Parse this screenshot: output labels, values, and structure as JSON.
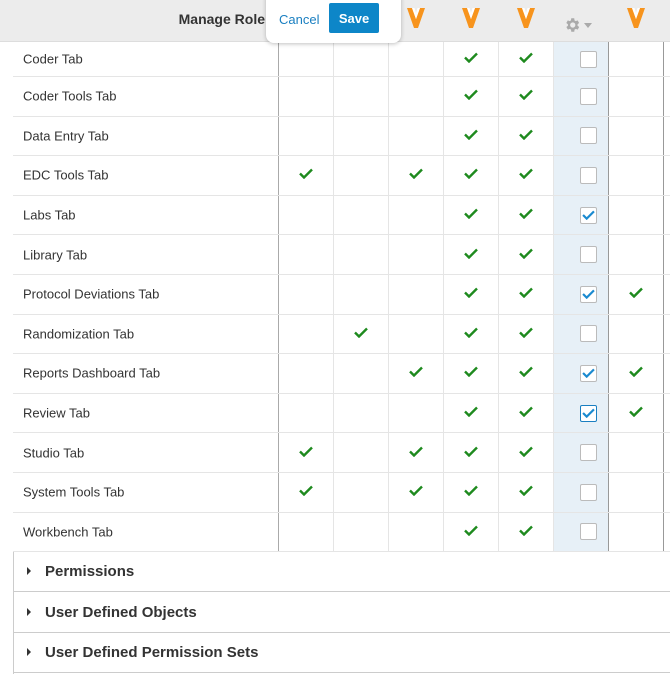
{
  "header": {
    "title": "Manage Role",
    "cancel_label": "Cancel",
    "save_label": "Save",
    "logo_columns": [
      3,
      4,
      5,
      7
    ],
    "logo_color": "#f7941d",
    "gear_icon": "gear-icon"
  },
  "colors": {
    "check": "#1e8a1e",
    "highlight_column": "#e7f0f7",
    "accent": "#0d86c8"
  },
  "rows": [
    {
      "label": "Coder Tab",
      "checks": [
        false,
        false,
        false,
        true,
        true
      ],
      "box": false,
      "last": false
    },
    {
      "label": "Coder Tools Tab",
      "checks": [
        false,
        false,
        false,
        true,
        true
      ],
      "box": false,
      "last": false
    },
    {
      "label": "Data Entry Tab",
      "checks": [
        false,
        false,
        false,
        true,
        true
      ],
      "box": false,
      "last": false
    },
    {
      "label": "EDC Tools Tab",
      "checks": [
        true,
        false,
        true,
        true,
        true
      ],
      "box": false,
      "last": false
    },
    {
      "label": "Labs Tab",
      "checks": [
        false,
        false,
        false,
        true,
        true
      ],
      "box": true,
      "last": false
    },
    {
      "label": "Library Tab",
      "checks": [
        false,
        false,
        false,
        true,
        true
      ],
      "box": false,
      "last": false
    },
    {
      "label": "Protocol Deviations Tab",
      "checks": [
        false,
        false,
        false,
        true,
        true
      ],
      "box": true,
      "last": true
    },
    {
      "label": "Randomization Tab",
      "checks": [
        false,
        true,
        false,
        true,
        true
      ],
      "box": false,
      "last": false
    },
    {
      "label": "Reports Dashboard Tab",
      "checks": [
        false,
        false,
        true,
        true,
        true
      ],
      "box": true,
      "last": true
    },
    {
      "label": "Review Tab",
      "checks": [
        false,
        false,
        false,
        true,
        true
      ],
      "box": true,
      "last": true,
      "focused": true
    },
    {
      "label": "Studio Tab",
      "checks": [
        true,
        false,
        true,
        true,
        true
      ],
      "box": false,
      "last": false
    },
    {
      "label": "System Tools Tab",
      "checks": [
        true,
        false,
        true,
        true,
        true
      ],
      "box": false,
      "last": false
    },
    {
      "label": "Workbench Tab",
      "checks": [
        false,
        false,
        false,
        true,
        true
      ],
      "box": false,
      "last": false
    }
  ],
  "sections": [
    {
      "label": "Permissions"
    },
    {
      "label": "User Defined Objects"
    },
    {
      "label": "User Defined Permission Sets"
    }
  ]
}
